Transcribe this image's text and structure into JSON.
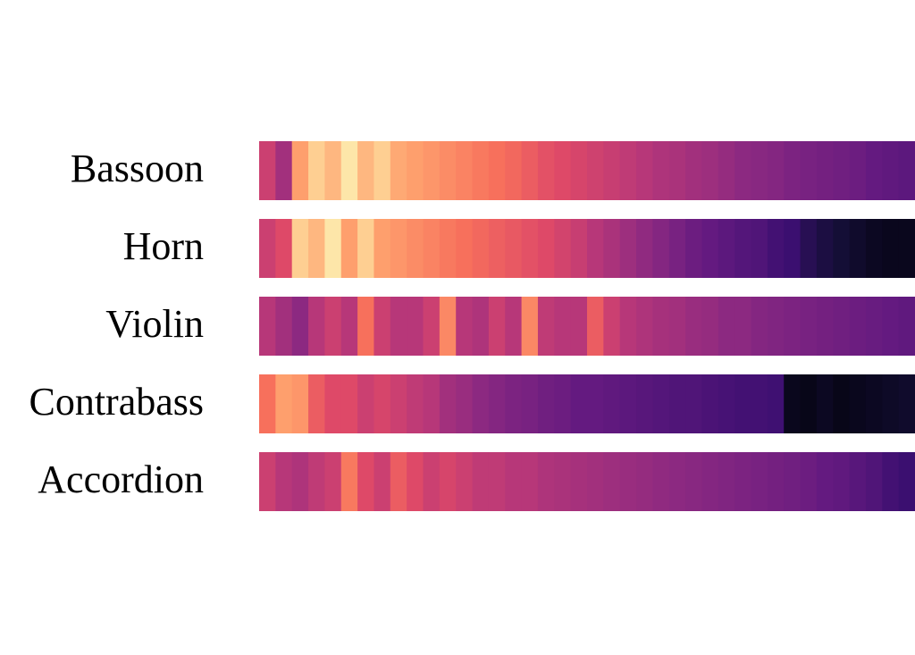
{
  "chart_data": {
    "type": "heatmap",
    "categories": [
      "Bassoon",
      "Horn",
      "Violin",
      "Contrabass",
      "Accordion"
    ],
    "colormap": "magma",
    "vlim": [
      0,
      1
    ],
    "values": [
      [
        0.55,
        0.45,
        0.8,
        0.9,
        0.85,
        0.95,
        0.85,
        0.9,
        0.82,
        0.8,
        0.78,
        0.76,
        0.74,
        0.72,
        0.7,
        0.68,
        0.65,
        0.62,
        0.6,
        0.58,
        0.56,
        0.54,
        0.52,
        0.5,
        0.48,
        0.47,
        0.45,
        0.44,
        0.42,
        0.4,
        0.39,
        0.38,
        0.36,
        0.35,
        0.34,
        0.33,
        0.32,
        0.3,
        0.29,
        0.28
      ],
      [
        0.55,
        0.6,
        0.9,
        0.85,
        0.95,
        0.8,
        0.9,
        0.8,
        0.78,
        0.76,
        0.74,
        0.72,
        0.7,
        0.68,
        0.66,
        0.64,
        0.62,
        0.6,
        0.57,
        0.54,
        0.5,
        0.47,
        0.44,
        0.41,
        0.38,
        0.35,
        0.32,
        0.3,
        0.28,
        0.26,
        0.25,
        0.22,
        0.2,
        0.15,
        0.12,
        0.1,
        0.08,
        0.06,
        0.05,
        0.05
      ],
      [
        0.5,
        0.45,
        0.4,
        0.5,
        0.55,
        0.5,
        0.7,
        0.55,
        0.5,
        0.5,
        0.55,
        0.75,
        0.5,
        0.48,
        0.55,
        0.5,
        0.75,
        0.52,
        0.5,
        0.5,
        0.65,
        0.55,
        0.5,
        0.48,
        0.46,
        0.45,
        0.43,
        0.42,
        0.4,
        0.4,
        0.38,
        0.37,
        0.36,
        0.35,
        0.34,
        0.33,
        0.32,
        0.31,
        0.3,
        0.29
      ],
      [
        0.7,
        0.8,
        0.78,
        0.65,
        0.6,
        0.6,
        0.55,
        0.58,
        0.55,
        0.52,
        0.5,
        0.45,
        0.43,
        0.4,
        0.38,
        0.36,
        0.35,
        0.33,
        0.32,
        0.3,
        0.3,
        0.29,
        0.28,
        0.27,
        0.26,
        0.25,
        0.25,
        0.24,
        0.23,
        0.22,
        0.22,
        0.21,
        0.05,
        0.04,
        0.06,
        0.04,
        0.05,
        0.06,
        0.07,
        0.08
      ],
      [
        0.55,
        0.5,
        0.48,
        0.52,
        0.55,
        0.72,
        0.6,
        0.55,
        0.65,
        0.6,
        0.55,
        0.58,
        0.55,
        0.52,
        0.52,
        0.5,
        0.5,
        0.48,
        0.47,
        0.46,
        0.45,
        0.44,
        0.43,
        0.42,
        0.41,
        0.4,
        0.39,
        0.38,
        0.37,
        0.36,
        0.35,
        0.34,
        0.33,
        0.32,
        0.3,
        0.29,
        0.27,
        0.25,
        0.22,
        0.2
      ]
    ]
  }
}
